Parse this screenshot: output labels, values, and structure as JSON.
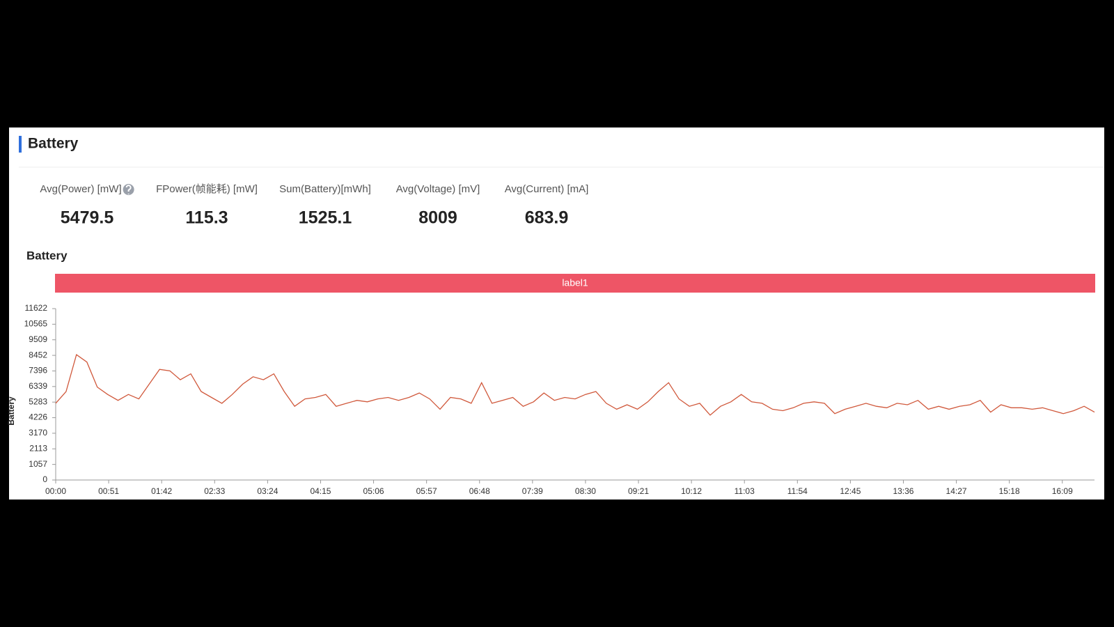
{
  "header": {
    "title": "Battery"
  },
  "metrics": [
    {
      "label": "Avg(Power) [mW]",
      "value": 5479.5
    },
    {
      "label": "FPower(帧能耗) [mW]",
      "value": 115.3
    },
    {
      "label": "Sum(Battery)[mWh]",
      "value": 1525.1
    },
    {
      "label": "Avg(Voltage) [mV]",
      "value": 8009
    },
    {
      "label": "Avg(Current) [mA]",
      "value": 683.9
    }
  ],
  "chart_data": {
    "type": "line",
    "title": "Battery",
    "band_label": "label1",
    "ylabel": "Battery",
    "grid": false,
    "xlim": [
      0,
      1000
    ],
    "xticks": [
      {
        "value": 0,
        "label": "00:00"
      },
      {
        "value": 51,
        "label": "00:51"
      },
      {
        "value": 102,
        "label": "01:42"
      },
      {
        "value": 153,
        "label": "02:33"
      },
      {
        "value": 204,
        "label": "03:24"
      },
      {
        "value": 255,
        "label": "04:15"
      },
      {
        "value": 306,
        "label": "05:06"
      },
      {
        "value": 357,
        "label": "05:57"
      },
      {
        "value": 408,
        "label": "06:48"
      },
      {
        "value": 459,
        "label": "07:39"
      },
      {
        "value": 510,
        "label": "08:30"
      },
      {
        "value": 561,
        "label": "09:21"
      },
      {
        "value": 612,
        "label": "10:12"
      },
      {
        "value": 663,
        "label": "11:03"
      },
      {
        "value": 714,
        "label": "11:54"
      },
      {
        "value": 765,
        "label": "12:45"
      },
      {
        "value": 816,
        "label": "13:36"
      },
      {
        "value": 867,
        "label": "14:27"
      },
      {
        "value": 918,
        "label": "15:18"
      },
      {
        "value": 969,
        "label": "16:09"
      }
    ],
    "ylim": [
      0,
      11622
    ],
    "yticks": [
      0,
      1057,
      2113,
      3170,
      4226,
      5283,
      6339,
      7396,
      8452,
      9509,
      10565,
      11622
    ],
    "x": [
      0,
      10,
      20,
      30,
      40,
      50,
      60,
      70,
      80,
      90,
      100,
      110,
      120,
      130,
      140,
      150,
      160,
      170,
      180,
      190,
      200,
      210,
      220,
      230,
      240,
      250,
      260,
      270,
      280,
      290,
      300,
      310,
      320,
      330,
      340,
      350,
      360,
      370,
      380,
      390,
      400,
      410,
      420,
      430,
      440,
      450,
      460,
      470,
      480,
      490,
      500,
      510,
      520,
      530,
      540,
      550,
      560,
      570,
      580,
      590,
      600,
      610,
      620,
      630,
      640,
      650,
      660,
      670,
      680,
      690,
      700,
      710,
      720,
      730,
      740,
      750,
      760,
      770,
      780,
      790,
      800,
      810,
      820,
      830,
      840,
      850,
      860,
      870,
      880,
      890,
      900,
      910,
      920,
      930,
      940,
      950,
      960,
      970,
      980,
      990,
      1000
    ],
    "series": [
      {
        "name": "Battery",
        "color": "#d0583b",
        "values": [
          5200,
          6000,
          8500,
          8000,
          6300,
          5800,
          5400,
          5800,
          5500,
          6500,
          7500,
          7400,
          6800,
          7200,
          6000,
          5600,
          5200,
          5800,
          6500,
          7000,
          6800,
          7200,
          6000,
          5000,
          5500,
          5600,
          5800,
          5000,
          5200,
          5400,
          5300,
          5500,
          5600,
          5400,
          5600,
          5900,
          5500,
          4800,
          5600,
          5500,
          5200,
          6600,
          5200,
          5400,
          5600,
          5000,
          5300,
          5900,
          5400,
          5600,
          5500,
          5800,
          6000,
          5200,
          4800,
          5100,
          4800,
          5300,
          6000,
          6600,
          5500,
          5000,
          5200,
          4400,
          5000,
          5300,
          5800,
          5300,
          5200,
          4800,
          4700,
          4900,
          5200,
          5300,
          5200,
          4500,
          4800,
          5000,
          5200,
          5000,
          4900,
          5200,
          5100,
          5400,
          4800,
          5000,
          4800,
          5000,
          5100,
          5400,
          4600,
          5100,
          4900,
          4900,
          4800,
          4900,
          4700,
          4500,
          4700,
          5000,
          4600
        ]
      }
    ]
  }
}
